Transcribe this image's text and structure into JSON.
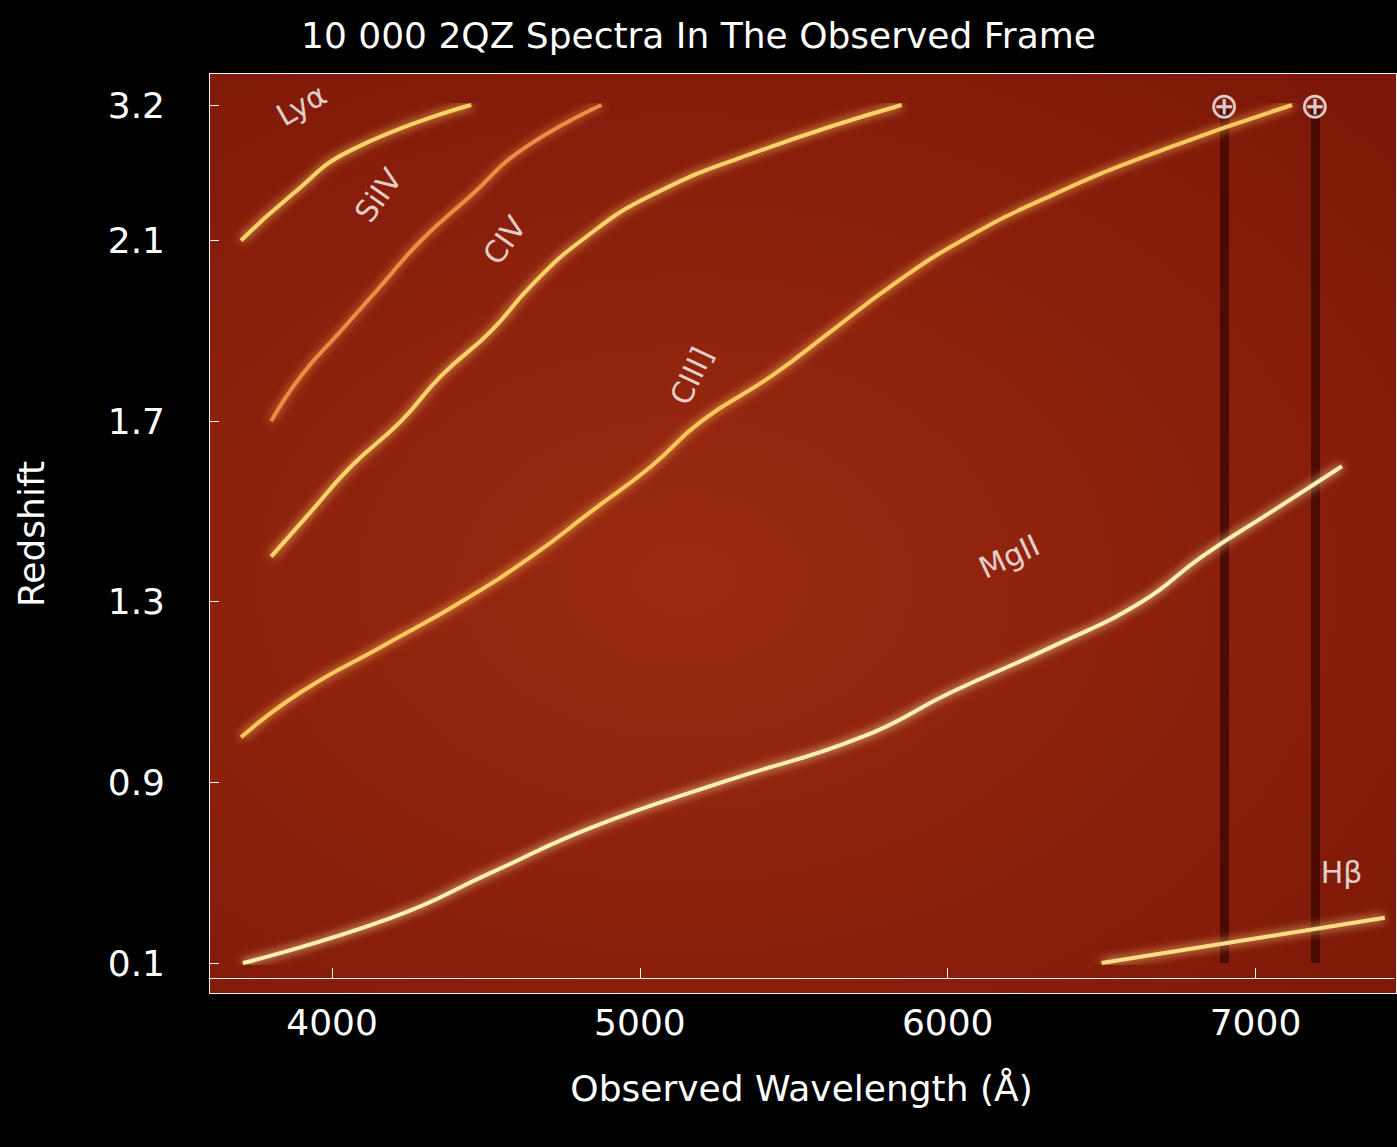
{
  "chart_data": {
    "type": "line",
    "orientation": "horizontal",
    "title": "10 000 2QZ Spectra In The Observed Frame",
    "x_label": "Observed Wavelength (Å)",
    "y_label": "Redshift",
    "xlim": [
      3600,
      7450
    ],
    "xticks": [
      4000,
      5000,
      6000,
      7000
    ],
    "categories": [
      "0.1",
      null,
      null,
      null,
      "0.9",
      null,
      null,
      null,
      "1.3",
      null,
      null,
      null,
      "1.7",
      null,
      null,
      null,
      "2.1",
      null,
      null,
      "3.2"
    ],
    "grid": false,
    "series": [
      {
        "name": "Lyα",
        "color": "#ffd36b",
        "label_at": [
          3900,
          19
        ],
        "values": [
          null,
          null,
          null,
          null,
          null,
          null,
          null,
          null,
          null,
          null,
          null,
          null,
          null,
          null,
          null,
          null,
          3704,
          3867,
          4062,
          4452
        ]
      },
      {
        "name": "SiIV",
        "color": "#f08a45",
        "label_at": [
          4150,
          17
        ],
        "values": [
          null,
          null,
          null,
          null,
          null,
          null,
          null,
          null,
          null,
          null,
          null,
          null,
          3802,
          3899,
          4029,
          4159,
          4289,
          4452,
          4615,
          4875
        ]
      },
      {
        "name": "CIV",
        "color": "#ffd36b",
        "label_at": [
          4560,
          16
        ],
        "values": [
          null,
          null,
          null,
          null,
          null,
          null,
          null,
          null,
          null,
          3802,
          3932,
          4062,
          4224,
          4354,
          4517,
          4647,
          4810,
          5037,
          5395,
          5850
        ]
      },
      {
        "name": "CIII]",
        "color": "#ffc85e",
        "label_at": [
          5167,
          13
        ],
        "values": [
          null,
          null,
          null,
          null,
          null,
          3704,
          3899,
          4159,
          4420,
          4647,
          4842,
          5037,
          5200,
          5428,
          5623,
          5818,
          6046,
          6338,
          6696,
          7119
        ]
      },
      {
        "name": "MgII",
        "color": "#fff0b0",
        "label_at": [
          6200,
          9
        ],
        "values": [
          3710,
          4192,
          4517,
          4842,
          5265,
          5720,
          6013,
          6338,
          6631,
          6826,
          7054,
          7281,
          null,
          null,
          null,
          null,
          null,
          null,
          null,
          null
        ]
      },
      {
        "name": "Hβ",
        "color": "#ffdd88",
        "label_at": [
          7280,
          2
        ],
        "values": [
          6500,
          7420,
          null,
          null,
          null,
          null,
          null,
          null,
          null,
          null,
          null,
          null,
          null,
          null,
          null,
          null,
          null,
          null,
          null,
          null
        ]
      }
    ],
    "annotations": [
      {
        "text": "⊕",
        "x": 6898,
        "row": 19
      },
      {
        "text": "⊕",
        "x": 7193,
        "row": 19
      }
    ]
  }
}
